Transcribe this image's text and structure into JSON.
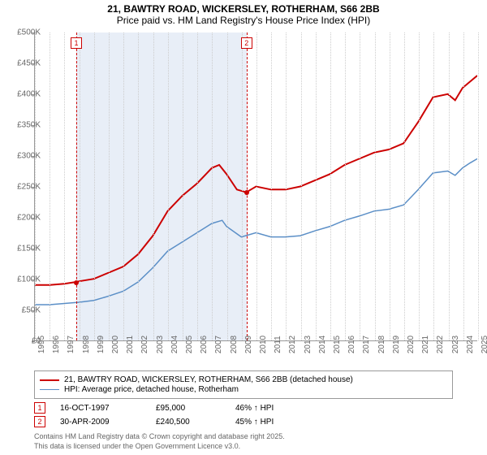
{
  "title": "21, BAWTRY ROAD, WICKERSLEY, ROTHERHAM, S66 2BB",
  "subtitle": "Price paid vs. HM Land Registry's House Price Index (HPI)",
  "chart": {
    "type": "line",
    "background_color": "#ffffff",
    "grid_color": "#cccccc",
    "axis_color": "#999999",
    "label_color": "#666666",
    "label_fontsize": 10,
    "title_fontsize": 12,
    "ylim": [
      0,
      500000
    ],
    "ytick_step": 50000,
    "yticks": [
      "£0",
      "£50K",
      "£100K",
      "£150K",
      "£200K",
      "£250K",
      "£300K",
      "£350K",
      "£400K",
      "£450K",
      "£500K"
    ],
    "xlim": [
      1995,
      2025
    ],
    "xticks": [
      1995,
      1996,
      1997,
      1998,
      1999,
      2000,
      2001,
      2002,
      2003,
      2004,
      2005,
      2006,
      2007,
      2008,
      2009,
      2010,
      2011,
      2012,
      2013,
      2014,
      2015,
      2016,
      2017,
      2018,
      2019,
      2020,
      2021,
      2022,
      2023,
      2024,
      2025
    ],
    "band": {
      "start": 1997.8,
      "end": 2009.33,
      "color": "#e8eef7"
    },
    "series": [
      {
        "name": "property",
        "label": "21, BAWTRY ROAD, WICKERSLEY, ROTHERHAM, S66 2BB (detached house)",
        "color": "#cc0000",
        "line_width": 2,
        "data": [
          [
            1995,
            90000
          ],
          [
            1996,
            90000
          ],
          [
            1997,
            92000
          ],
          [
            1997.8,
            95000
          ],
          [
            1998,
            96000
          ],
          [
            1999,
            100000
          ],
          [
            2000,
            110000
          ],
          [
            2001,
            120000
          ],
          [
            2002,
            140000
          ],
          [
            2003,
            170000
          ],
          [
            2004,
            210000
          ],
          [
            2005,
            235000
          ],
          [
            2006,
            255000
          ],
          [
            2007,
            280000
          ],
          [
            2007.5,
            285000
          ],
          [
            2008,
            270000
          ],
          [
            2008.7,
            245000
          ],
          [
            2009.33,
            240500
          ],
          [
            2010,
            250000
          ],
          [
            2011,
            245000
          ],
          [
            2012,
            245000
          ],
          [
            2013,
            250000
          ],
          [
            2014,
            260000
          ],
          [
            2015,
            270000
          ],
          [
            2016,
            285000
          ],
          [
            2017,
            295000
          ],
          [
            2018,
            305000
          ],
          [
            2019,
            310000
          ],
          [
            2020,
            320000
          ],
          [
            2021,
            355000
          ],
          [
            2022,
            395000
          ],
          [
            2023,
            400000
          ],
          [
            2023.5,
            390000
          ],
          [
            2024,
            410000
          ],
          [
            2024.5,
            420000
          ],
          [
            2025,
            430000
          ]
        ]
      },
      {
        "name": "hpi",
        "label": "HPI: Average price, detached house, Rotherham",
        "color": "#5b8fc7",
        "line_width": 1.5,
        "data": [
          [
            1995,
            58000
          ],
          [
            1996,
            58000
          ],
          [
            1997,
            60000
          ],
          [
            1998,
            62000
          ],
          [
            1999,
            65000
          ],
          [
            2000,
            72000
          ],
          [
            2001,
            80000
          ],
          [
            2002,
            95000
          ],
          [
            2003,
            118000
          ],
          [
            2004,
            145000
          ],
          [
            2005,
            160000
          ],
          [
            2006,
            175000
          ],
          [
            2007,
            190000
          ],
          [
            2007.7,
            195000
          ],
          [
            2008,
            185000
          ],
          [
            2009,
            168000
          ],
          [
            2010,
            175000
          ],
          [
            2011,
            168000
          ],
          [
            2012,
            168000
          ],
          [
            2013,
            170000
          ],
          [
            2014,
            178000
          ],
          [
            2015,
            185000
          ],
          [
            2016,
            195000
          ],
          [
            2017,
            202000
          ],
          [
            2018,
            210000
          ],
          [
            2019,
            213000
          ],
          [
            2020,
            220000
          ],
          [
            2021,
            245000
          ],
          [
            2022,
            272000
          ],
          [
            2023,
            275000
          ],
          [
            2023.5,
            268000
          ],
          [
            2024,
            280000
          ],
          [
            2024.5,
            288000
          ],
          [
            2025,
            295000
          ]
        ]
      }
    ],
    "markers": [
      {
        "num": "1",
        "x": 1997.8,
        "y": 95000,
        "color": "#cc0000"
      },
      {
        "num": "2",
        "x": 2009.33,
        "y": 240500,
        "color": "#cc0000"
      }
    ]
  },
  "legend": {
    "items": [
      {
        "color": "#cc0000",
        "width": 2,
        "label": "21, BAWTRY ROAD, WICKERSLEY, ROTHERHAM, S66 2BB (detached house)"
      },
      {
        "color": "#5b8fc7",
        "width": 1.5,
        "label": "HPI: Average price, detached house, Rotherham"
      }
    ]
  },
  "datapoints": [
    {
      "num": "1",
      "date": "16-OCT-1997",
      "price": "£95,000",
      "diff": "46% ↑ HPI"
    },
    {
      "num": "2",
      "date": "30-APR-2009",
      "price": "£240,500",
      "diff": "45% ↑ HPI"
    }
  ],
  "footer": {
    "line1": "Contains HM Land Registry data © Crown copyright and database right 2025.",
    "line2": "This data is licensed under the Open Government Licence v3.0."
  }
}
